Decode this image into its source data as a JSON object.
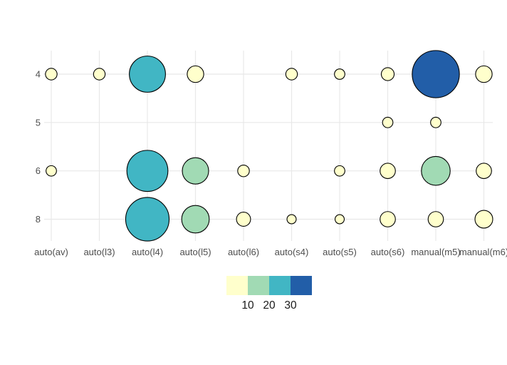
{
  "chart_data": {
    "type": "scatter",
    "subtype": "bubble-count",
    "title": "",
    "xlabel": "",
    "ylabel": "",
    "x_categories": [
      "auto(av)",
      "auto(l3)",
      "auto(l4)",
      "auto(l5)",
      "auto(l6)",
      "auto(s4)",
      "auto(s5)",
      "auto(s6)",
      "manual(m5)",
      "manual(m6)"
    ],
    "y_categories": [
      "4",
      "5",
      "6",
      "8"
    ],
    "points": [
      {
        "x": "auto(av)",
        "y": "4",
        "n": 3
      },
      {
        "x": "auto(av)",
        "y": "6",
        "n": 2
      },
      {
        "x": "auto(l3)",
        "y": "4",
        "n": 3
      },
      {
        "x": "auto(l4)",
        "y": "4",
        "n": 23
      },
      {
        "x": "auto(l4)",
        "y": "6",
        "n": 27
      },
      {
        "x": "auto(l4)",
        "y": "8",
        "n": 29
      },
      {
        "x": "auto(l5)",
        "y": "4",
        "n": 7
      },
      {
        "x": "auto(l5)",
        "y": "6",
        "n": 15
      },
      {
        "x": "auto(l5)",
        "y": "8",
        "n": 16
      },
      {
        "x": "auto(l6)",
        "y": "6",
        "n": 3
      },
      {
        "x": "auto(l6)",
        "y": "8",
        "n": 5
      },
      {
        "x": "auto(s4)",
        "y": "4",
        "n": 3
      },
      {
        "x": "auto(s4)",
        "y": "8",
        "n": 1
      },
      {
        "x": "auto(s5)",
        "y": "4",
        "n": 2
      },
      {
        "x": "auto(s5)",
        "y": "6",
        "n": 2
      },
      {
        "x": "auto(s5)",
        "y": "8",
        "n": 1
      },
      {
        "x": "auto(s6)",
        "y": "4",
        "n": 4
      },
      {
        "x": "auto(s6)",
        "y": "5",
        "n": 2
      },
      {
        "x": "auto(s6)",
        "y": "6",
        "n": 6
      },
      {
        "x": "auto(s6)",
        "y": "8",
        "n": 6
      },
      {
        "x": "manual(m5)",
        "y": "4",
        "n": 32
      },
      {
        "x": "manual(m5)",
        "y": "5",
        "n": 2
      },
      {
        "x": "manual(m5)",
        "y": "6",
        "n": 17
      },
      {
        "x": "manual(m5)",
        "y": "8",
        "n": 6
      },
      {
        "x": "manual(m6)",
        "y": "4",
        "n": 7
      },
      {
        "x": "manual(m6)",
        "y": "6",
        "n": 6
      },
      {
        "x": "manual(m6)",
        "y": "8",
        "n": 8
      }
    ],
    "size_encoding": "marker size increases with count n",
    "color_bins": {
      "breaks": [
        10,
        20,
        30
      ],
      "bin_ranges": [
        "0-10",
        "10-20",
        "20-30",
        "30+"
      ],
      "colors": [
        "#FFFFCC",
        "#A1DAB4",
        "#41B6C4",
        "#225EA8"
      ]
    },
    "legend": {
      "position": "bottom-center",
      "tick_labels": [
        "10",
        "20",
        "30"
      ]
    },
    "grid": true,
    "styles": {
      "background": "#FFFFFF",
      "gridline_color": "#E8E8E8",
      "axis_text_color": "#4D4D4D",
      "legend_text_color": "#1A1A1A",
      "marker_stroke_color": "#000000"
    }
  }
}
